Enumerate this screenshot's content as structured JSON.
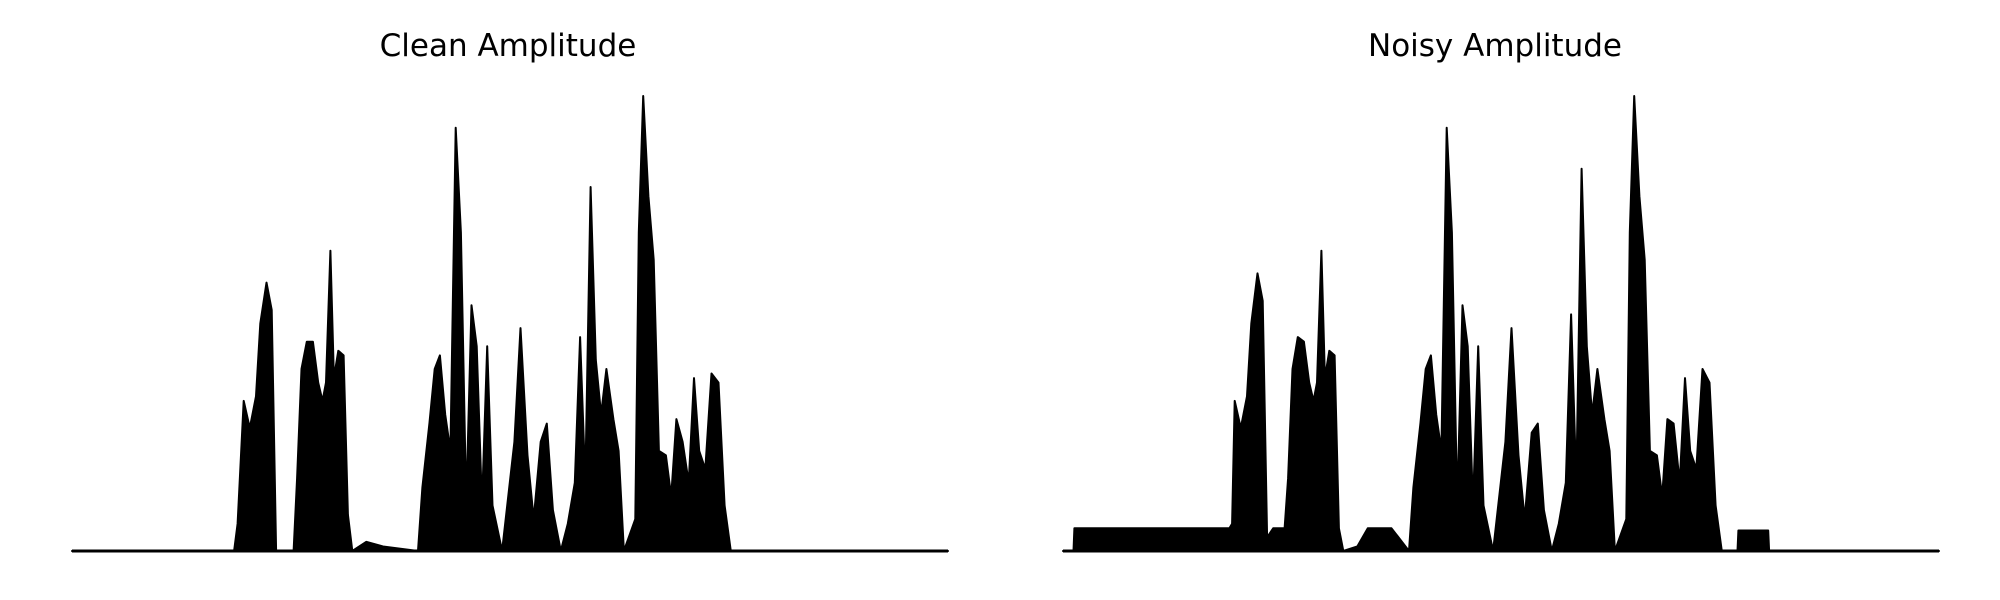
{
  "chart_data": [
    {
      "type": "area",
      "title": "Clean Amplitude",
      "xlabel": "",
      "ylabel": "",
      "axes_visible": false,
      "grid": false,
      "color": "#000000",
      "xlim": [
        0,
        1
      ],
      "ylim": [
        0,
        1
      ],
      "envelope": [
        [
          0.0,
          0.0
        ],
        [
          0.185,
          0.0
        ],
        [
          0.189,
          0.06
        ],
        [
          0.196,
          0.33
        ],
        [
          0.203,
          0.27
        ],
        [
          0.21,
          0.34
        ],
        [
          0.215,
          0.5
        ],
        [
          0.222,
          0.59
        ],
        [
          0.228,
          0.53
        ],
        [
          0.233,
          0.0
        ],
        [
          0.253,
          0.0
        ],
        [
          0.257,
          0.16
        ],
        [
          0.262,
          0.4
        ],
        [
          0.268,
          0.46
        ],
        [
          0.275,
          0.46
        ],
        [
          0.281,
          0.37
        ],
        [
          0.286,
          0.33
        ],
        [
          0.29,
          0.37
        ],
        [
          0.295,
          0.66
        ],
        [
          0.299,
          0.38
        ],
        [
          0.304,
          0.44
        ],
        [
          0.31,
          0.43
        ],
        [
          0.315,
          0.08
        ],
        [
          0.32,
          0.0
        ],
        [
          0.336,
          0.02
        ],
        [
          0.355,
          0.01
        ],
        [
          0.395,
          0.0
        ],
        [
          0.4,
          0.14
        ],
        [
          0.408,
          0.28
        ],
        [
          0.414,
          0.4
        ],
        [
          0.42,
          0.43
        ],
        [
          0.426,
          0.3
        ],
        [
          0.432,
          0.22
        ],
        [
          0.438,
          0.93
        ],
        [
          0.444,
          0.7
        ],
        [
          0.45,
          0.1
        ],
        [
          0.456,
          0.54
        ],
        [
          0.462,
          0.45
        ],
        [
          0.468,
          0.1
        ],
        [
          0.474,
          0.45
        ],
        [
          0.48,
          0.1
        ],
        [
          0.491,
          0.0
        ],
        [
          0.505,
          0.24
        ],
        [
          0.512,
          0.49
        ],
        [
          0.52,
          0.21
        ],
        [
          0.527,
          0.07
        ],
        [
          0.535,
          0.24
        ],
        [
          0.542,
          0.28
        ],
        [
          0.549,
          0.09
        ],
        [
          0.558,
          0.0
        ],
        [
          0.566,
          0.06
        ],
        [
          0.574,
          0.15
        ],
        [
          0.58,
          0.47
        ],
        [
          0.586,
          0.15
        ],
        [
          0.592,
          0.8
        ],
        [
          0.598,
          0.42
        ],
        [
          0.604,
          0.3
        ],
        [
          0.61,
          0.4
        ],
        [
          0.618,
          0.29
        ],
        [
          0.624,
          0.22
        ],
        [
          0.63,
          0.0
        ],
        [
          0.643,
          0.07
        ],
        [
          0.647,
          0.7
        ],
        [
          0.652,
          1.0
        ],
        [
          0.658,
          0.78
        ],
        [
          0.664,
          0.64
        ],
        [
          0.67,
          0.22
        ],
        [
          0.678,
          0.21
        ],
        [
          0.684,
          0.12
        ],
        [
          0.69,
          0.29
        ],
        [
          0.697,
          0.24
        ],
        [
          0.704,
          0.15
        ],
        [
          0.71,
          0.38
        ],
        [
          0.716,
          0.22
        ],
        [
          0.723,
          0.18
        ],
        [
          0.73,
          0.39
        ],
        [
          0.738,
          0.37
        ],
        [
          0.745,
          0.1
        ],
        [
          0.752,
          0.0
        ],
        [
          1.0,
          0.0
        ]
      ]
    },
    {
      "type": "area",
      "title": "Noisy Amplitude",
      "xlabel": "",
      "ylabel": "",
      "axes_visible": false,
      "grid": false,
      "color": "#000000",
      "xlim": [
        0,
        1
      ],
      "ylim": [
        0,
        1
      ],
      "envelope": [
        [
          0.0,
          0.0
        ],
        [
          0.012,
          0.0
        ],
        [
          0.013,
          0.05
        ],
        [
          0.19,
          0.05
        ],
        [
          0.193,
          0.06
        ],
        [
          0.196,
          0.33
        ],
        [
          0.203,
          0.27
        ],
        [
          0.21,
          0.34
        ],
        [
          0.215,
          0.5
        ],
        [
          0.222,
          0.61
        ],
        [
          0.228,
          0.55
        ],
        [
          0.233,
          0.03
        ],
        [
          0.24,
          0.05
        ],
        [
          0.253,
          0.05
        ],
        [
          0.257,
          0.16
        ],
        [
          0.262,
          0.4
        ],
        [
          0.268,
          0.47
        ],
        [
          0.275,
          0.46
        ],
        [
          0.281,
          0.37
        ],
        [
          0.286,
          0.33
        ],
        [
          0.29,
          0.37
        ],
        [
          0.295,
          0.66
        ],
        [
          0.299,
          0.38
        ],
        [
          0.304,
          0.44
        ],
        [
          0.31,
          0.43
        ],
        [
          0.315,
          0.05
        ],
        [
          0.32,
          0.0
        ],
        [
          0.336,
          0.01
        ],
        [
          0.348,
          0.05
        ],
        [
          0.375,
          0.05
        ],
        [
          0.395,
          0.0
        ],
        [
          0.4,
          0.14
        ],
        [
          0.408,
          0.28
        ],
        [
          0.414,
          0.4
        ],
        [
          0.42,
          0.43
        ],
        [
          0.426,
          0.3
        ],
        [
          0.432,
          0.22
        ],
        [
          0.438,
          0.93
        ],
        [
          0.444,
          0.7
        ],
        [
          0.45,
          0.1
        ],
        [
          0.456,
          0.54
        ],
        [
          0.462,
          0.45
        ],
        [
          0.468,
          0.1
        ],
        [
          0.474,
          0.45
        ],
        [
          0.48,
          0.1
        ],
        [
          0.491,
          0.0
        ],
        [
          0.505,
          0.24
        ],
        [
          0.512,
          0.49
        ],
        [
          0.52,
          0.21
        ],
        [
          0.527,
          0.07
        ],
        [
          0.535,
          0.26
        ],
        [
          0.542,
          0.28
        ],
        [
          0.549,
          0.09
        ],
        [
          0.558,
          0.0
        ],
        [
          0.566,
          0.06
        ],
        [
          0.574,
          0.15
        ],
        [
          0.58,
          0.52
        ],
        [
          0.586,
          0.15
        ],
        [
          0.592,
          0.84
        ],
        [
          0.598,
          0.45
        ],
        [
          0.604,
          0.3
        ],
        [
          0.61,
          0.4
        ],
        [
          0.618,
          0.29
        ],
        [
          0.624,
          0.22
        ],
        [
          0.63,
          0.0
        ],
        [
          0.643,
          0.07
        ],
        [
          0.647,
          0.7
        ],
        [
          0.652,
          1.0
        ],
        [
          0.658,
          0.78
        ],
        [
          0.664,
          0.64
        ],
        [
          0.67,
          0.22
        ],
        [
          0.678,
          0.21
        ],
        [
          0.684,
          0.12
        ],
        [
          0.69,
          0.29
        ],
        [
          0.697,
          0.28
        ],
        [
          0.704,
          0.15
        ],
        [
          0.71,
          0.38
        ],
        [
          0.716,
          0.22
        ],
        [
          0.723,
          0.18
        ],
        [
          0.73,
          0.4
        ],
        [
          0.738,
          0.37
        ],
        [
          0.745,
          0.1
        ],
        [
          0.752,
          0.0
        ],
        [
          0.77,
          0.0
        ],
        [
          0.771,
          0.045
        ],
        [
          0.805,
          0.045
        ],
        [
          0.806,
          0.0
        ],
        [
          1.0,
          0.0
        ]
      ]
    }
  ]
}
